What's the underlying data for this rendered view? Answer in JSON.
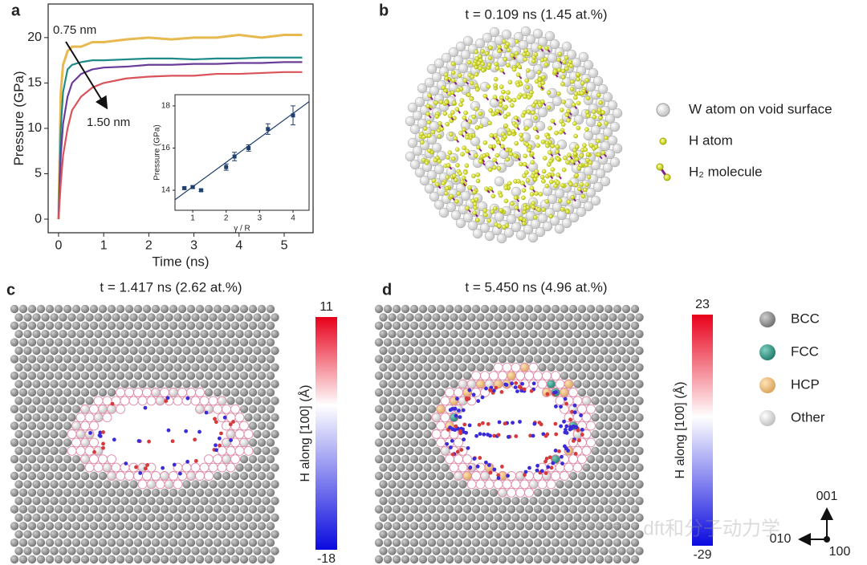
{
  "chart_data": [
    {
      "type": "line",
      "label": "a",
      "xlabel": "Time (ns)",
      "ylabel": "Pressure (GPa)",
      "annotations": [
        "0.75 nm",
        "1.50 nm"
      ],
      "x": [
        0,
        0.05,
        0.1,
        0.2,
        0.3,
        0.5,
        0.75,
        1,
        1.5,
        2,
        2.5,
        3,
        3.5,
        4,
        4.5,
        5,
        5.4
      ],
      "series": [
        {
          "color": "#e8b94f",
          "values": [
            0,
            14,
            17,
            18.5,
            19,
            19,
            19.5,
            19.5,
            19.8,
            20,
            19.8,
            20,
            20,
            20.3,
            20,
            20.3,
            20.3
          ]
        },
        {
          "color": "#1f8a8a",
          "values": [
            0,
            10,
            14,
            16.5,
            17,
            17.3,
            17.5,
            17.5,
            17.6,
            17.7,
            17.7,
            17.6,
            17.7,
            17.7,
            17.8,
            17.8,
            17.8
          ]
        },
        {
          "color": "#6a3d9a",
          "values": [
            0,
            7,
            10.5,
            13.5,
            15,
            16,
            16.5,
            16.7,
            16.8,
            17,
            17,
            17.1,
            17.1,
            17.2,
            17.2,
            17.3,
            17.3
          ]
        },
        {
          "color": "#d9545a",
          "values": [
            0,
            4,
            7,
            10,
            12,
            13.5,
            14.5,
            15,
            15.5,
            15.7,
            15.8,
            15.8,
            16,
            16,
            16.1,
            16.2,
            16.2
          ]
        }
      ],
      "xlim": [
        -0.23,
        5.64
      ],
      "ylim": [
        -1.5,
        23.7
      ],
      "xticks": [
        0,
        1,
        2,
        3,
        4,
        5
      ],
      "yticks": [
        0,
        5,
        10,
        15,
        20
      ]
    },
    {
      "type": "errorbar",
      "xlabel": "γ / R",
      "ylabel": "Pressure (GPa)",
      "color": "#1f3f6e",
      "x": [
        0.75,
        1,
        1.25,
        2,
        2.25,
        2.67,
        3.25,
        4
      ],
      "values": [
        14.1,
        14.15,
        14.0,
        15.1,
        15.6,
        16.0,
        16.9,
        17.55
      ],
      "errors": [
        0.05,
        0.05,
        0.05,
        0.15,
        0.2,
        0.15,
        0.25,
        0.45
      ],
      "fit": {
        "x": [
          0.47,
          4.48
        ],
        "y": [
          13.55,
          18.2
        ]
      },
      "xlim": [
        0.47,
        4.48
      ],
      "ylim": [
        13.05,
        18.53
      ],
      "xticks": [
        1,
        2,
        3,
        4
      ],
      "yticks": [
        14,
        16,
        18
      ]
    }
  ],
  "panel_b": {
    "label": "b",
    "title": "t = 0.109 ns (1.45 at.%)",
    "legend": [
      "W atom on void surface",
      "H atom",
      "H₂ molecule"
    ]
  },
  "panel_c": {
    "label": "c",
    "title": "t = 1.417 ns (2.62 at.%)",
    "colorbar": {
      "label": "H along [100] (Å)",
      "max": 11,
      "min": -18
    }
  },
  "panel_d": {
    "label": "d",
    "title": "t = 5.450 ns (4.96 at.%)",
    "colorbar": {
      "label": "H along [100] (Å)",
      "max": 23,
      "min": -29
    },
    "legend": [
      "BCC",
      "FCC",
      "HCP",
      "Other"
    ]
  },
  "axes_indicator": {
    "up": "001",
    "left": "010",
    "origin": "100"
  },
  "watermark": "公众号 · dft和分子动力学"
}
